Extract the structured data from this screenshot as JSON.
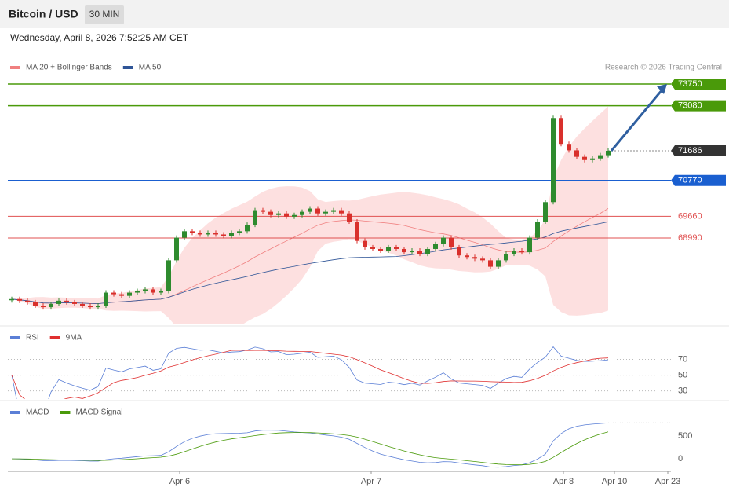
{
  "header": {
    "title": "Bitcoin / USD",
    "interval": "30 MIN",
    "timestamp": "Wednesday, April 8, 2026 7:52:25 AM CET"
  },
  "chart_data": [
    {
      "type": "candlestick",
      "legend": [
        {
          "name": "MA 20 + Bollinger Bands",
          "color": "#f08080"
        },
        {
          "name": "MA 50",
          "color": "#2f5597"
        }
      ],
      "credit": "Research © 2026 Trading Central",
      "up_color": "#2e8b2e",
      "down_color": "#d9302c",
      "closes": [
        67100,
        67050,
        67000,
        66900,
        66850,
        66950,
        67050,
        67000,
        66950,
        66900,
        66850,
        66900,
        67300,
        67250,
        67200,
        67300,
        67350,
        67400,
        67300,
        67350,
        68300,
        69000,
        69200,
        69150,
        69100,
        69150,
        69100,
        69050,
        69150,
        69200,
        69400,
        69850,
        69800,
        69700,
        69750,
        69650,
        69700,
        69800,
        69900,
        69750,
        69800,
        69850,
        69750,
        69500,
        68900,
        68700,
        68650,
        68600,
        68700,
        68650,
        68550,
        68600,
        68500,
        68650,
        68800,
        69000,
        68700,
        68450,
        68400,
        68350,
        68300,
        68100,
        68300,
        68500,
        68600,
        68550,
        69000,
        69500,
        70100,
        72700,
        71900,
        71700,
        71500,
        71400,
        71450,
        71550,
        71686
      ],
      "xlim": [
        -0.5,
        84
      ],
      "ylim": [
        66390,
        74480
      ],
      "xticks": [
        {
          "value": 21.4,
          "label": "Apr 6"
        },
        {
          "value": 45.8,
          "label": "Apr 7"
        },
        {
          "value": 70.3,
          "label": "Apr 8"
        },
        {
          "value": 76.8,
          "label": "Apr 10"
        },
        {
          "value": 83.6,
          "label": "Apr 23"
        }
      ],
      "levels": [
        {
          "value": 73750,
          "color": "#4a9a0a",
          "style": "box"
        },
        {
          "value": 73080,
          "color": "#4a9a0a",
          "style": "box"
        },
        {
          "value": 71686,
          "color": "#333333",
          "style": "current"
        },
        {
          "value": 70770,
          "color": "#1a5fd0",
          "style": "box"
        },
        {
          "value": 69660,
          "color": "#e05050",
          "style": "text"
        },
        {
          "value": 68990,
          "color": "#e05050",
          "style": "text"
        }
      ]
    },
    {
      "type": "rsi",
      "series": [
        {
          "name": "RSI",
          "color": "#5b7fd6"
        },
        {
          "name": "9MA",
          "color": "#e03030"
        }
      ],
      "ylim": [
        19.7,
        89.5
      ],
      "yticks": [
        70,
        50,
        30
      ]
    },
    {
      "type": "macd",
      "series": [
        {
          "name": "MACD",
          "color": "#5b7fd6"
        },
        {
          "name": "MACD Signal",
          "color": "#4a9a0a"
        }
      ],
      "ylim": [
        -241,
        833
      ],
      "yticks": [
        500,
        0
      ]
    }
  ]
}
